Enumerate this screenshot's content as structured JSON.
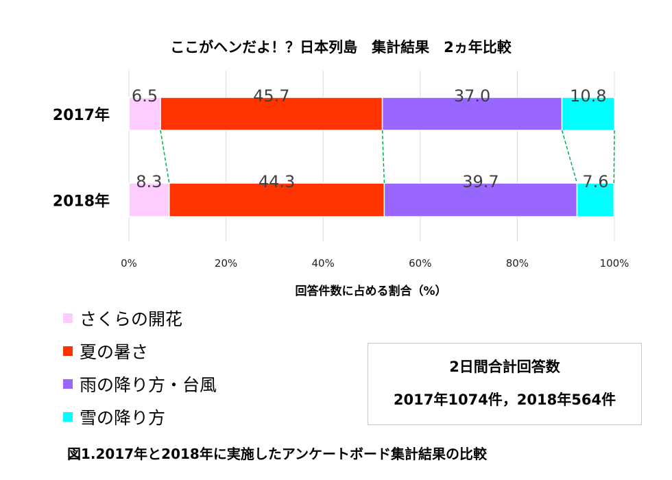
{
  "chart_data": {
    "type": "bar",
    "orientation": "horizontal",
    "stacked": "percent",
    "title": "ここがヘンだよ！？日本列島　集計結果　2ヵ年比較",
    "xlabel": "回答件数に占める割合（%）",
    "ylabel": "",
    "xlim": [
      0,
      100
    ],
    "xticks": [
      "0%",
      "20%",
      "40%",
      "60%",
      "80%",
      "100%"
    ],
    "categories": [
      "2017年",
      "2018年"
    ],
    "grid": true,
    "series_connector_lines": true,
    "legend_position": "bottom-left",
    "series": [
      {
        "name": "さくらの開花",
        "values": [
          6.5,
          8.3
        ],
        "labels": [
          "6.5",
          "8.3"
        ],
        "color": "#FFCCFF"
      },
      {
        "name": "夏の暑さ",
        "values": [
          45.7,
          44.3
        ],
        "labels": [
          "45.7",
          "44.3"
        ],
        "color": "#FF3300"
      },
      {
        "name": "雨の降り方・台風",
        "values": [
          37.0,
          39.7
        ],
        "labels": [
          "37.0",
          "39.7"
        ],
        "color": "#9966FF"
      },
      {
        "name": "雪の降り方",
        "values": [
          10.8,
          7.6
        ],
        "labels": [
          "10.8",
          "7.6"
        ],
        "color": "#00FFFF"
      }
    ]
  },
  "note": {
    "line1": "2日間合計回答数",
    "line2": "2017年1074件，2018年564件"
  },
  "caption": "図1.2017年と2018年に実施したアンケートボード集計結果の比較"
}
